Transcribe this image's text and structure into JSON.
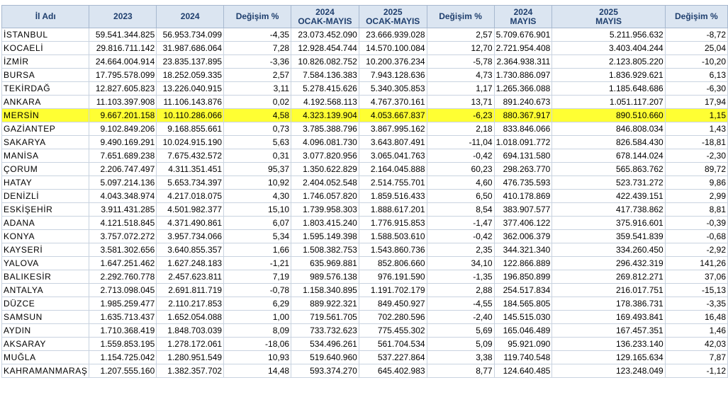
{
  "columns": [
    "İl Adı",
    "2023",
    "2024",
    "Değişim %",
    "2024\nOCAK-MAYIS",
    "2025\nOCAK-MAYIS",
    "Değişim %",
    "2024\nMAYIS",
    "2025\nMAYIS",
    "Değişim %"
  ],
  "highlight_row": "MERSİN",
  "colors": {
    "header_bg": "#dbe5f1",
    "header_text": "#1f3f6e",
    "highlight": "#ffff33",
    "grid": "#c9d3e0"
  },
  "rows": [
    [
      "İSTANBUL",
      "59.541.344.825",
      "56.953.734.099",
      "-4,35",
      "23.073.452.090",
      "23.666.939.028",
      "2,57",
      "5.709.676.901",
      "5.211.956.632",
      "-8,72"
    ],
    [
      "KOCAELİ",
      "29.816.711.142",
      "31.987.686.064",
      "7,28",
      "12.928.454.744",
      "14.570.100.084",
      "12,70",
      "2.721.954.408",
      "3.403.404.244",
      "25,04"
    ],
    [
      "İZMİR",
      "24.664.004.914",
      "23.835.137.895",
      "-3,36",
      "10.826.082.752",
      "10.200.376.234",
      "-5,78",
      "2.364.938.311",
      "2.123.805.220",
      "-10,20"
    ],
    [
      "BURSA",
      "17.795.578.099",
      "18.252.059.335",
      "2,57",
      "7.584.136.383",
      "7.943.128.636",
      "4,73",
      "1.730.886.097",
      "1.836.929.621",
      "6,13"
    ],
    [
      "TEKİRDAĞ",
      "12.827.605.823",
      "13.226.040.915",
      "3,11",
      "5.278.415.626",
      "5.340.305.853",
      "1,17",
      "1.265.366.088",
      "1.185.648.686",
      "-6,30"
    ],
    [
      "ANKARA",
      "11.103.397.908",
      "11.106.143.876",
      "0,02",
      "4.192.568.113",
      "4.767.370.161",
      "13,71",
      "891.240.673",
      "1.051.117.207",
      "17,94"
    ],
    [
      "MERSİN",
      "9.667.201.158",
      "10.110.286.066",
      "4,58",
      "4.323.139.904",
      "4.053.667.837",
      "-6,23",
      "880.367.917",
      "890.510.660",
      "1,15"
    ],
    [
      "GAZİANTEP",
      "9.102.849.206",
      "9.168.855.661",
      "0,73",
      "3.785.388.796",
      "3.867.995.162",
      "2,18",
      "833.846.066",
      "846.808.034",
      "1,43"
    ],
    [
      "SAKARYA",
      "9.490.169.291",
      "10.024.915.190",
      "5,63",
      "4.096.081.730",
      "3.643.807.491",
      "-11,04",
      "1.018.091.772",
      "826.584.430",
      "-18,81"
    ],
    [
      "MANİSA",
      "7.651.689.238",
      "7.675.432.572",
      "0,31",
      "3.077.820.956",
      "3.065.041.763",
      "-0,42",
      "694.131.580",
      "678.144.024",
      "-2,30"
    ],
    [
      "ÇORUM",
      "2.206.747.497",
      "4.311.351.451",
      "95,37",
      "1.350.622.829",
      "2.164.045.888",
      "60,23",
      "298.263.770",
      "565.863.762",
      "89,72"
    ],
    [
      "HATAY",
      "5.097.214.136",
      "5.653.734.397",
      "10,92",
      "2.404.052.548",
      "2.514.755.701",
      "4,60",
      "476.735.593",
      "523.731.272",
      "9,86"
    ],
    [
      "DENİZLİ",
      "4.043.348.974",
      "4.217.018.075",
      "4,30",
      "1.746.057.820",
      "1.859.516.433",
      "6,50",
      "410.178.869",
      "422.439.151",
      "2,99"
    ],
    [
      "ESKİŞEHİR",
      "3.911.431.285",
      "4.501.982.377",
      "15,10",
      "1.739.958.303",
      "1.888.617.201",
      "8,54",
      "383.907.577",
      "417.738.862",
      "8,81"
    ],
    [
      "ADANA",
      "4.121.518.845",
      "4.371.490.861",
      "6,07",
      "1.803.415.240",
      "1.776.915.853",
      "-1,47",
      "377.406.122",
      "375.916.601",
      "-0,39"
    ],
    [
      "KONYA",
      "3.757.072.272",
      "3.957.734.066",
      "5,34",
      "1.595.149.398",
      "1.588.503.610",
      "-0,42",
      "362.006.379",
      "359.541.839",
      "-0,68"
    ],
    [
      "KAYSERİ",
      "3.581.302.656",
      "3.640.855.357",
      "1,66",
      "1.508.382.753",
      "1.543.860.736",
      "2,35",
      "344.321.340",
      "334.260.450",
      "-2,92"
    ],
    [
      "YALOVA",
      "1.647.251.462",
      "1.627.248.183",
      "-1,21",
      "635.969.881",
      "852.806.660",
      "34,10",
      "122.866.889",
      "296.432.319",
      "141,26"
    ],
    [
      "BALIKESİR",
      "2.292.760.778",
      "2.457.623.811",
      "7,19",
      "989.576.138",
      "976.191.590",
      "-1,35",
      "196.850.899",
      "269.812.271",
      "37,06"
    ],
    [
      "ANTALYA",
      "2.713.098.045",
      "2.691.811.719",
      "-0,78",
      "1.158.340.895",
      "1.191.702.179",
      "2,88",
      "254.517.834",
      "216.017.751",
      "-15,13"
    ],
    [
      "DÜZCE",
      "1.985.259.477",
      "2.110.217.853",
      "6,29",
      "889.922.321",
      "849.450.927",
      "-4,55",
      "184.565.805",
      "178.386.731",
      "-3,35"
    ],
    [
      "SAMSUN",
      "1.635.713.437",
      "1.652.054.088",
      "1,00",
      "719.561.705",
      "702.280.596",
      "-2,40",
      "145.515.030",
      "169.493.841",
      "16,48"
    ],
    [
      "AYDIN",
      "1.710.368.419",
      "1.848.703.039",
      "8,09",
      "733.732.623",
      "775.455.302",
      "5,69",
      "165.046.489",
      "167.457.351",
      "1,46"
    ],
    [
      "AKSARAY",
      "1.559.853.195",
      "1.278.172.061",
      "-18,06",
      "534.496.261",
      "561.704.534",
      "5,09",
      "95.921.090",
      "136.233.140",
      "42,03"
    ],
    [
      "MUĞLA",
      "1.154.725.042",
      "1.280.951.549",
      "10,93",
      "519.640.960",
      "537.227.864",
      "3,38",
      "119.740.548",
      "129.165.634",
      "7,87"
    ],
    [
      "KAHRAMANMARAŞ",
      "1.207.555.160",
      "1.382.357.702",
      "14,48",
      "593.374.270",
      "645.402.983",
      "8,77",
      "124.640.485",
      "123.248.049",
      "-1,12"
    ]
  ]
}
